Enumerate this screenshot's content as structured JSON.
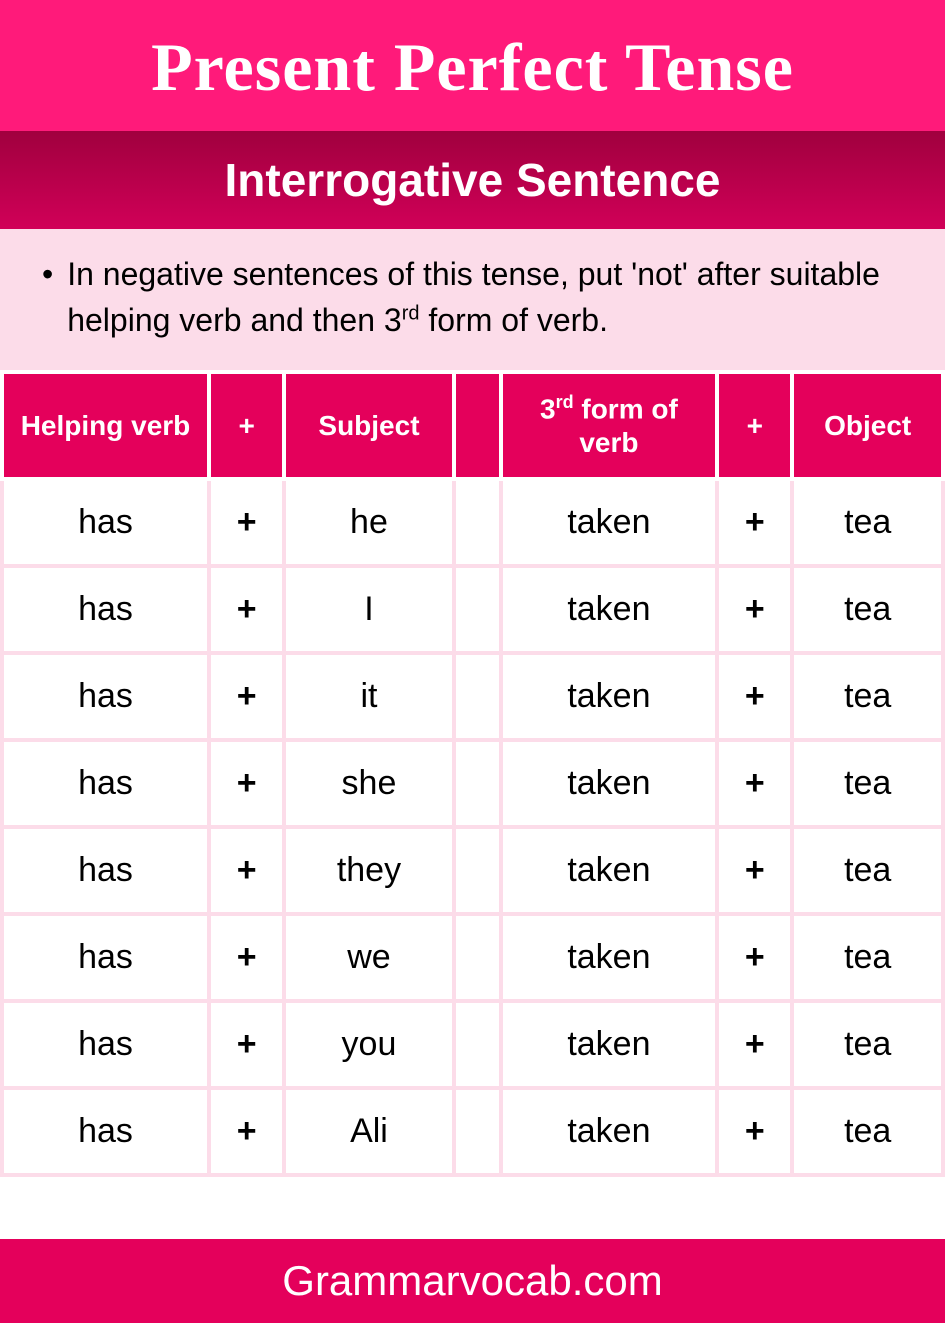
{
  "colors": {
    "title_bg": "#ff1a7a",
    "subtitle_top": "#a0003e",
    "subtitle_bot": "#d10058",
    "desc_bg": "#fcdce9",
    "th_bg": "#e4005b",
    "row_border": "#fcdce9",
    "footer_bg": "#e4005b"
  },
  "title": "Present Perfect Tense",
  "subtitle": "Interrogative Sentence",
  "description": {
    "pre": "In negative sentences of this tense, put 'not' after suitable helping verb and then 3",
    "sup": "rd",
    "post": " form of verb."
  },
  "table": {
    "headers": {
      "h1": "Helping verb",
      "h2": "+",
      "h3": "Subject",
      "h4": "",
      "h5_pre": "3",
      "h5_sup": "rd",
      "h5_post": " form of verb",
      "h6": "+",
      "h7": "Object"
    },
    "rows": [
      {
        "hv": "has",
        "p1": "+",
        "subj": "he",
        "sp": "",
        "v3": "taken",
        "p2": "+",
        "obj": "tea"
      },
      {
        "hv": "has",
        "p1": "+",
        "subj": "I",
        "sp": "",
        "v3": "taken",
        "p2": "+",
        "obj": "tea"
      },
      {
        "hv": "has",
        "p1": "+",
        "subj": "it",
        "sp": "",
        "v3": "taken",
        "p2": "+",
        "obj": "tea"
      },
      {
        "hv": "has",
        "p1": "+",
        "subj": "she",
        "sp": "",
        "v3": "taken",
        "p2": "+",
        "obj": "tea"
      },
      {
        "hv": "has",
        "p1": "+",
        "subj": "they",
        "sp": "",
        "v3": "taken",
        "p2": "+",
        "obj": "tea"
      },
      {
        "hv": "has",
        "p1": "+",
        "subj": "we",
        "sp": "",
        "v3": "taken",
        "p2": "+",
        "obj": "tea"
      },
      {
        "hv": "has",
        "p1": "+",
        "subj": "you",
        "sp": "",
        "v3": "taken",
        "p2": "+",
        "obj": "tea"
      },
      {
        "hv": "has",
        "p1": "+",
        "subj": "Ali",
        "sp": "",
        "v3": "taken",
        "p2": "+",
        "obj": "tea"
      }
    ]
  },
  "footer": "Grammarvocab.com"
}
